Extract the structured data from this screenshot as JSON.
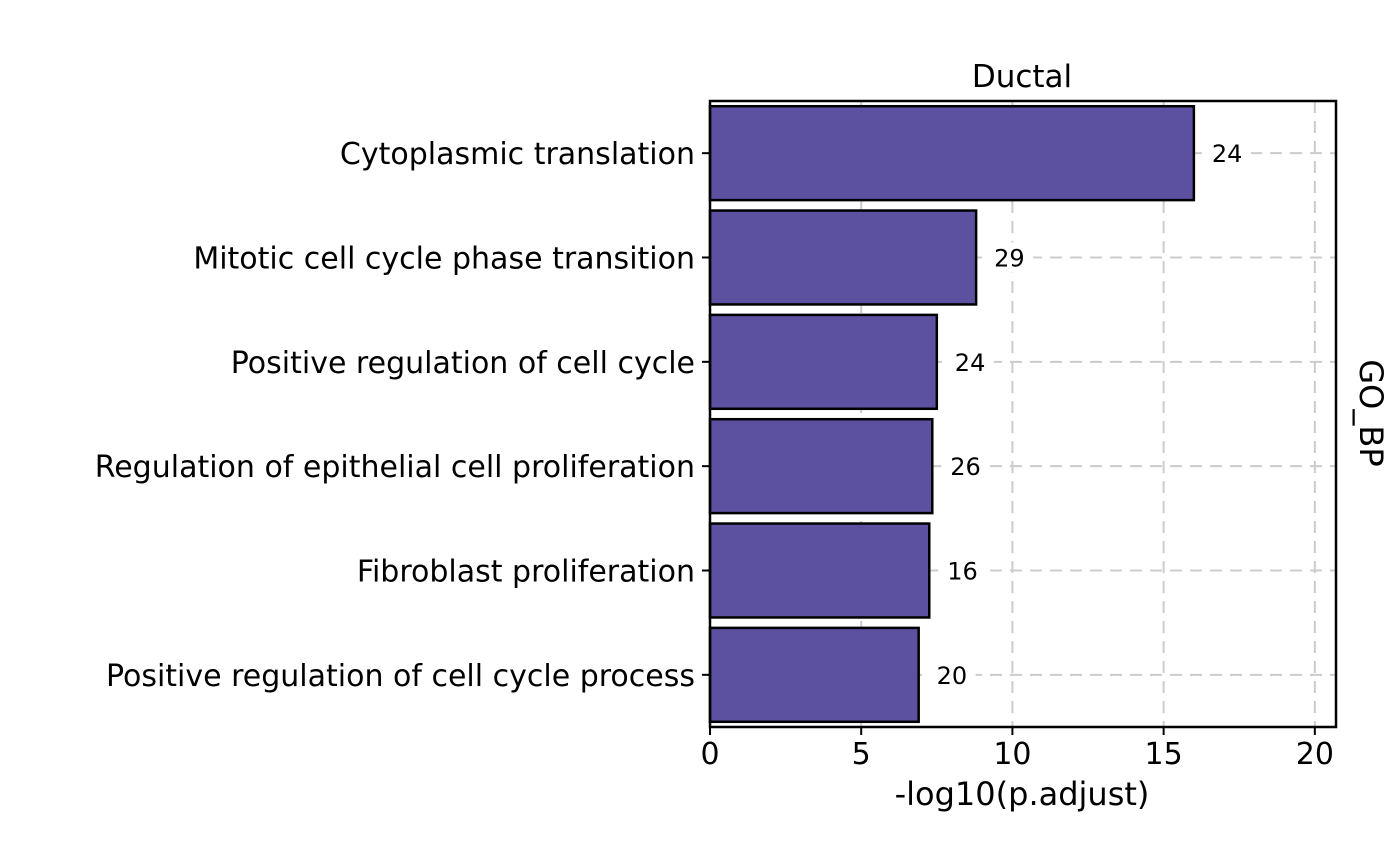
{
  "chart_data": {
    "type": "bar",
    "orientation": "horizontal",
    "facet_title": "Ductal",
    "strip_label": "GO_BP",
    "xlabel": "-log10(p.adjust)",
    "ylabel": "",
    "xlim": [
      0,
      20.7
    ],
    "x_ticks": [
      0,
      5,
      10,
      15,
      20
    ],
    "grid": true,
    "bar_color": "#5c50a0",
    "categories": [
      "Cytoplasmic translation",
      "Mitotic cell cycle phase transition",
      "Positive regulation of cell cycle",
      "Regulation of epithelial cell proliferation",
      "Fibroblast proliferation",
      "Positive regulation of cell cycle process"
    ],
    "values": [
      16.0,
      8.8,
      7.5,
      7.35,
      7.25,
      6.9
    ],
    "bar_labels": [
      "24",
      "29",
      "24",
      "26",
      "16",
      "20"
    ]
  }
}
